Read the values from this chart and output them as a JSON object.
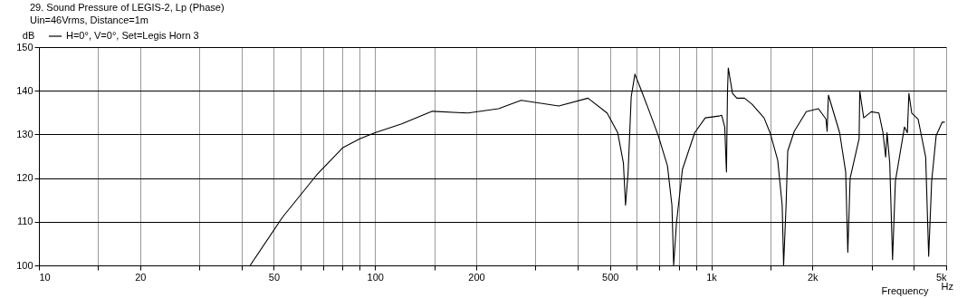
{
  "chart_data": {
    "type": "line",
    "title": "29. Sound Pressure of LEGIS-2, Lp (Phase)",
    "subtitle": "Uin=46Vrms, Distance=1m",
    "xlabel": "Frequency",
    "ylabel": "dB",
    "annotations": [
      "Hz"
    ],
    "log": "x",
    "grid": true,
    "legend": "top left",
    "marker": "none",
    "line_style": "solid",
    "xlim": [
      10,
      5000
    ],
    "ylim": [
      100,
      150
    ],
    "xticks": [
      10,
      {
        "value": 15,
        "label": null
      },
      20,
      {
        "value": 30,
        "label": null
      },
      {
        "value": 40,
        "label": null
      },
      50,
      {
        "value": 60,
        "label": null
      },
      {
        "value": 70,
        "label": null
      },
      {
        "value": 80,
        "label": null
      },
      {
        "value": 90,
        "label": null
      },
      100,
      {
        "value": 150,
        "label": null
      },
      200,
      {
        "value": 300,
        "label": null
      },
      {
        "value": 400,
        "label": null
      },
      500,
      {
        "value": 600,
        "label": null
      },
      {
        "value": 700,
        "label": null
      },
      {
        "value": 800,
        "label": null
      },
      {
        "value": 900,
        "label": null
      },
      {
        "value": 1000,
        "label": "1k"
      },
      {
        "value": 1500,
        "label": null
      },
      {
        "value": 2000,
        "label": "2k"
      },
      {
        "value": 3000,
        "label": null
      },
      {
        "value": 4000,
        "label": null
      },
      {
        "value": 5000,
        "label": "5k"
      }
    ],
    "yticks": [
      100,
      110,
      120,
      130,
      140,
      150
    ],
    "series": [
      {
        "name": "H=0°, V=0°, Set=Legis Horn 3",
        "color": "#000000",
        "x": [
          42.5,
          53,
          67,
          80,
          90,
          100,
          120,
          148,
          189,
          233,
          272,
          352,
          430,
          490,
          527,
          548,
          556,
          566,
          578,
          593,
          615,
          655,
          696,
          741,
          764,
          773,
          788,
          821,
          893,
          960,
          1053,
          1074,
          1097,
          1110,
          1118,
          1124,
          1157,
          1192,
          1256,
          1323,
          1436,
          1496,
          1577,
          1626,
          1642,
          1670,
          1689,
          1766,
          1918,
          2084,
          2195,
          2212,
          2232,
          2410,
          2512,
          2549,
          2590,
          2754,
          2766,
          2842,
          2993,
          3154,
          3243,
          3303,
          3335,
          3397,
          3463,
          3531,
          3758,
          3833,
          3873,
          3949,
          4126,
          4345,
          4435,
          4527,
          4668,
          4864,
          4953
        ],
        "values": [
          100,
          111,
          120.7,
          126.9,
          129,
          130.4,
          132.4,
          135.3,
          134.9,
          135.9,
          137.8,
          136.5,
          138.3,
          134.9,
          130.4,
          123.4,
          113.8,
          121.4,
          138.6,
          143.8,
          140.7,
          135.2,
          129.7,
          122.8,
          113.8,
          100,
          109.6,
          122,
          130.4,
          133.8,
          134.2,
          134.4,
          131.7,
          121.4,
          140,
          145.2,
          139.4,
          138.3,
          138.3,
          136.9,
          133.8,
          130.4,
          124.1,
          113.8,
          100,
          113.8,
          126.2,
          130.7,
          135.2,
          135.9,
          133.5,
          130.7,
          139,
          130.4,
          121.4,
          103,
          120,
          129,
          140,
          133.8,
          135.2,
          134.9,
          130.4,
          124.8,
          130.4,
          123.4,
          101.3,
          119.3,
          131.7,
          130.4,
          139.4,
          134.9,
          133.5,
          124.8,
          102.1,
          119.3,
          129.7,
          132.8,
          132.8
        ]
      }
    ]
  }
}
